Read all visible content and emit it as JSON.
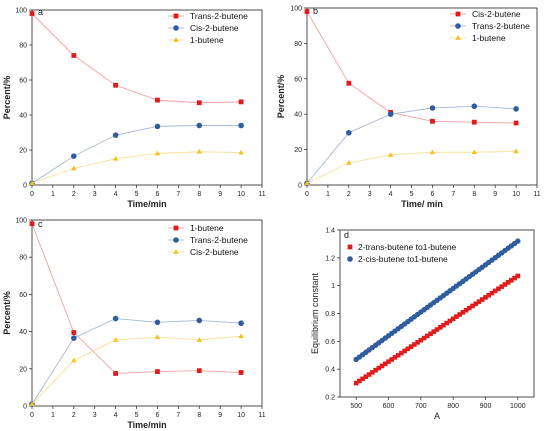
{
  "colors": {
    "red": "#e11b1b",
    "blue": "#2f5d9e",
    "yellow": "#f3c320",
    "line_red": "#f3a0a0",
    "line_blue": "#a9b9d3",
    "line_yellow": "#f5e29a"
  },
  "chart_data": [
    {
      "panel": "a",
      "type": "line",
      "xlabel": "Time/min",
      "ylabel": "Percent/%",
      "xlim": [
        0,
        11
      ],
      "ylim": [
        0,
        100
      ],
      "xticks": [
        0,
        1,
        2,
        3,
        4,
        5,
        6,
        7,
        8,
        9,
        10,
        11
      ],
      "yticks": [
        0,
        20,
        40,
        60,
        80,
        100
      ],
      "legend_position": "top-right",
      "x": [
        0,
        2,
        4,
        6,
        8,
        10
      ],
      "series": [
        {
          "name": "Trans-2-butene",
          "marker": "square",
          "color": "red",
          "values": [
            98,
            74,
            57,
            48.5,
            47,
            47.5
          ]
        },
        {
          "name": "Cis-2-butene",
          "marker": "circle",
          "color": "blue",
          "values": [
            1,
            16.5,
            28.5,
            33.5,
            34,
            34
          ]
        },
        {
          "name": "1-butene",
          "marker": "triangle",
          "color": "yellow",
          "values": [
            1,
            9.5,
            15,
            18,
            19,
            18.5
          ]
        }
      ]
    },
    {
      "panel": "b",
      "type": "line",
      "xlabel": "Time/ min",
      "ylabel": "Percent/%",
      "xlim": [
        0,
        11
      ],
      "ylim": [
        0,
        100
      ],
      "xticks": [
        0,
        1,
        2,
        3,
        4,
        5,
        6,
        7,
        8,
        9,
        10,
        11
      ],
      "yticks": [
        0,
        20,
        40,
        60,
        80,
        100
      ],
      "legend_position": "top-right",
      "x": [
        0,
        2,
        4,
        6,
        8,
        10
      ],
      "series": [
        {
          "name": "Cis-2-butene",
          "marker": "square",
          "color": "red",
          "values": [
            98,
            57.5,
            41,
            36,
            35.5,
            35
          ]
        },
        {
          "name": "Trans-2-butene",
          "marker": "circle",
          "color": "blue",
          "values": [
            1,
            29.5,
            40,
            43.5,
            44.5,
            43
          ]
        },
        {
          "name": "1-butene",
          "marker": "triangle",
          "color": "yellow",
          "values": [
            1,
            12.5,
            17,
            18.5,
            18.5,
            19
          ]
        }
      ]
    },
    {
      "panel": "c",
      "type": "line",
      "xlabel": "Time/min",
      "ylabel": "Percent/%",
      "xlim": [
        0,
        11
      ],
      "ylim": [
        0,
        100
      ],
      "xticks": [
        0,
        1,
        2,
        3,
        4,
        5,
        6,
        7,
        8,
        9,
        10,
        11
      ],
      "yticks": [
        0,
        20,
        40,
        60,
        80,
        100
      ],
      "legend_position": "top-right",
      "x": [
        0,
        2,
        4,
        6,
        8,
        10
      ],
      "series": [
        {
          "name": "1-butene",
          "marker": "square",
          "color": "red",
          "values": [
            98,
            39.5,
            17.5,
            18.5,
            19,
            18
          ]
        },
        {
          "name": "Trans-2-butene",
          "marker": "circle",
          "color": "blue",
          "values": [
            1,
            36.5,
            47,
            45,
            46,
            44.5
          ]
        },
        {
          "name": "Cis-2-butene",
          "marker": "triangle",
          "color": "yellow",
          "values": [
            1,
            24.5,
            35.5,
            37,
            35.5,
            37.5
          ]
        }
      ]
    },
    {
      "panel": "d",
      "type": "scatter",
      "xlabel": "A",
      "ylabel": "Equilibrium constant",
      "xlim": [
        450,
        1050
      ],
      "ylim": [
        0.2,
        1.4
      ],
      "xticks": [
        500,
        600,
        700,
        800,
        900,
        1000
      ],
      "yticks": [
        0.2,
        0.4,
        0.6,
        0.8,
        1.0,
        1.2,
        1.4
      ],
      "legend_position": "top-left",
      "x_range": [
        500,
        1000
      ],
      "series": [
        {
          "name": "2-trans-butene to1-butene",
          "marker": "square",
          "color": "red",
          "y_at_xmin": 0.3,
          "y_at_xmax": 1.07
        },
        {
          "name": "2-cis-butene to1-butene",
          "marker": "circle",
          "color": "blue",
          "y_at_xmin": 0.47,
          "y_at_xmax": 1.32
        }
      ]
    }
  ]
}
